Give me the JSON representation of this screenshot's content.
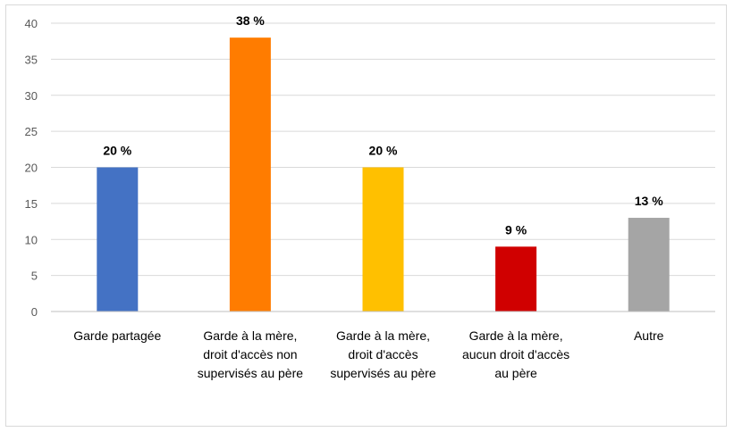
{
  "chart_data": {
    "type": "bar",
    "title": "",
    "xlabel": "",
    "ylabel": "",
    "ylim": [
      0,
      40
    ],
    "yticks": [
      0,
      5,
      10,
      15,
      20,
      25,
      30,
      35,
      40
    ],
    "grid": true,
    "legend": "none",
    "categories": [
      [
        "Garde partagée"
      ],
      [
        "Garde à la mère,",
        "droit d'accès non",
        "supervisés au père"
      ],
      [
        "Garde à la mère,",
        "droit d'accès",
        "supervisés au père"
      ],
      [
        "Garde à la mère,",
        "aucun droit d'accès",
        "au père"
      ],
      [
        "Autre"
      ]
    ],
    "values": [
      20,
      38,
      20,
      9,
      13
    ],
    "data_labels": [
      "20 %",
      "38 %",
      "20 %",
      "9 %",
      "13 %"
    ],
    "colors": [
      "#4472c4",
      "#ff7c00",
      "#ffc000",
      "#d00000",
      "#a5a5a5"
    ],
    "gridline_color": "#d9d9d9",
    "axis_color": "#bfbfbf"
  }
}
